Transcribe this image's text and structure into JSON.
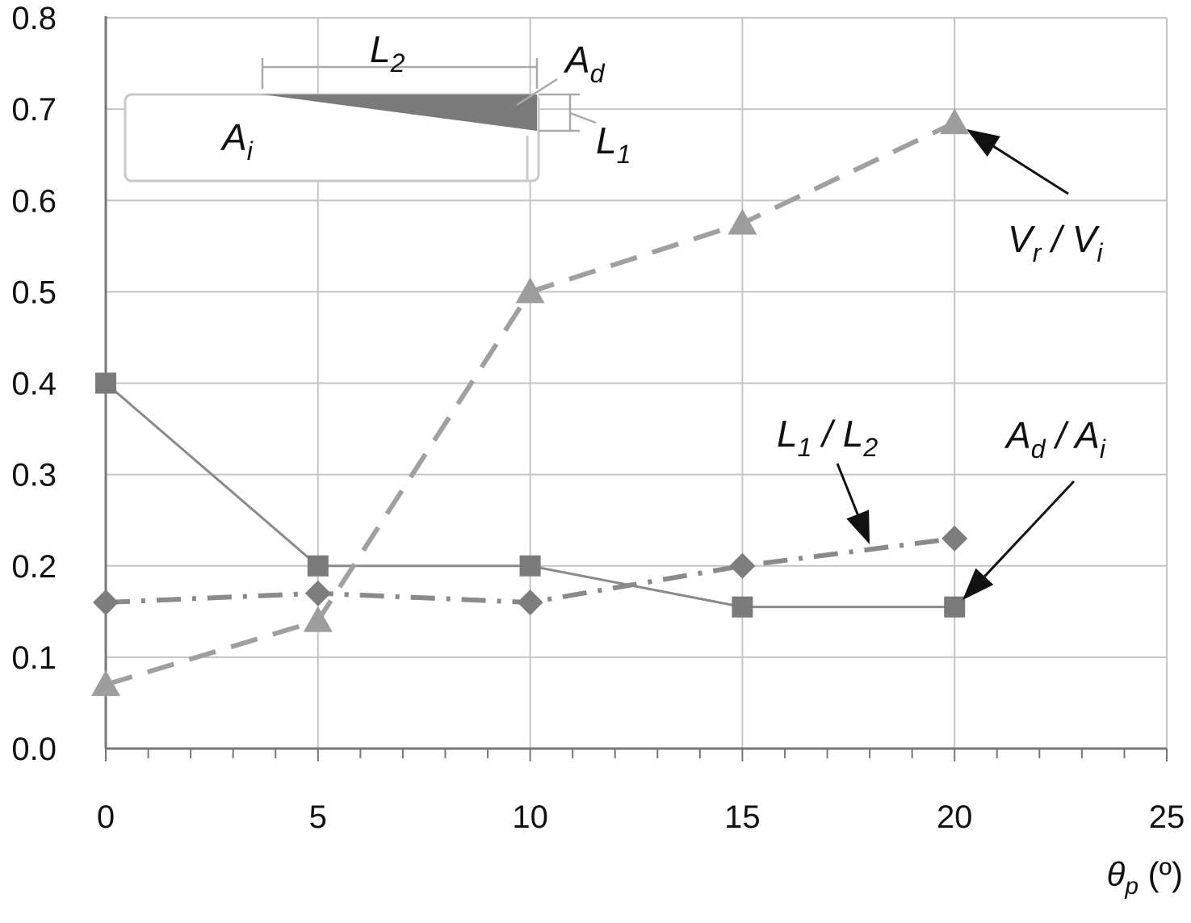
{
  "chart_data": {
    "type": "line",
    "xlabel": {
      "symbol": "θ",
      "sub": "p",
      "unit": " (º)"
    },
    "ylabel": "",
    "xlim": [
      0,
      25
    ],
    "ylim": [
      0.0,
      0.8
    ],
    "x_ticks": [
      "0",
      "5",
      "10",
      "15",
      "20",
      "25"
    ],
    "y_ticks": [
      "0.0",
      "0.1",
      "0.2",
      "0.3",
      "0.4",
      "0.5",
      "0.6",
      "0.7",
      "0.8"
    ],
    "grid": true,
    "x": [
      0,
      5,
      10,
      15,
      20
    ],
    "series": [
      {
        "key": "ad_ai",
        "label": {
          "a": "A",
          "a_sub": "d",
          "sep": " / ",
          "b": "A",
          "b_sub": "i"
        },
        "values": [
          0.4,
          0.2,
          0.2,
          0.155,
          0.155
        ],
        "marker": "square",
        "line_style": "solid",
        "color": "#7a7a7a",
        "line_color": "#8a8a8a"
      },
      {
        "key": "l1_l2",
        "label": {
          "a": "L",
          "a_sub": "1",
          "sep": " / ",
          "b": "L",
          "b_sub": "2"
        },
        "values": [
          0.16,
          0.17,
          0.16,
          0.2,
          0.23
        ],
        "marker": "diamond",
        "line_style": "dashdot",
        "color": "#7d7d7d",
        "line_color": "#8a8a8a"
      },
      {
        "key": "vr_vi",
        "label": {
          "a": "V",
          "a_sub": "r",
          "sep": " / ",
          "b": "V",
          "b_sub": "i"
        },
        "values": [
          0.07,
          0.14,
          0.5,
          0.575,
          0.685
        ],
        "marker": "triangle",
        "line_style": "dashed",
        "color": "#9d9d9d",
        "line_color": "#a0a0a0"
      }
    ],
    "inset": {
      "labels": [
        {
          "key": "l2",
          "main": "L",
          "sub": "2"
        },
        {
          "key": "ad",
          "main": "A",
          "sub": "d"
        },
        {
          "key": "l1",
          "main": "L",
          "sub": "1"
        },
        {
          "key": "ai",
          "main": "A",
          "sub": "i"
        }
      ]
    }
  }
}
